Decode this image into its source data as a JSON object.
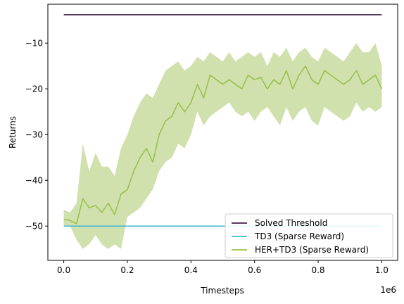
{
  "chart_data": {
    "type": "line",
    "title": "",
    "xlabel": "Timesteps",
    "ylabel": "Returns",
    "x_offset_label": "1e6",
    "xlim": [
      -50000,
      1050000
    ],
    "ylim": [
      -57.5,
      -1.5
    ],
    "x_ticks": [
      0,
      200000,
      400000,
      600000,
      800000,
      1000000
    ],
    "x_tick_labels": [
      "0.0",
      "0.2",
      "0.4",
      "0.6",
      "0.8",
      "1.0"
    ],
    "y_ticks": [
      -50,
      -40,
      -30,
      -20,
      -10
    ],
    "y_tick_labels": [
      "−50",
      "−40",
      "−30",
      "−20",
      "−10"
    ],
    "grid": false,
    "legend_position": "lower-right",
    "series": [
      {
        "name": "Solved Threshold",
        "color": "#3b1f44",
        "x": [
          0,
          1000000
        ],
        "y": [
          -3.8,
          -3.8
        ]
      },
      {
        "name": "TD3 (Sparse Reward)",
        "color": "#3fb8d6",
        "x": [
          0,
          1000000
        ],
        "y": [
          -50,
          -50
        ]
      },
      {
        "name": "HER+TD3 (Sparse Reward)",
        "color": "#9ac14c",
        "band_color": "#c8dca0",
        "x": [
          0,
          20000,
          40000,
          60000,
          80000,
          100000,
          120000,
          140000,
          160000,
          180000,
          200000,
          220000,
          240000,
          260000,
          280000,
          300000,
          320000,
          340000,
          360000,
          380000,
          400000,
          420000,
          440000,
          460000,
          480000,
          500000,
          520000,
          540000,
          560000,
          580000,
          600000,
          620000,
          640000,
          660000,
          680000,
          700000,
          720000,
          740000,
          760000,
          780000,
          800000,
          820000,
          840000,
          860000,
          880000,
          900000,
          920000,
          940000,
          960000,
          980000,
          1000000
        ],
        "y": [
          -48.5,
          -48.8,
          -49.5,
          -44,
          -46,
          -45.5,
          -47,
          -45,
          -47.5,
          -43,
          -42,
          -38,
          -35,
          -33,
          -36,
          -30,
          -27,
          -26,
          -23,
          -25,
          -23,
          -19,
          -22,
          -17,
          -18,
          -19,
          -18,
          -19,
          -20,
          -17,
          -18,
          -17.5,
          -20,
          -18,
          -19,
          -16,
          -20,
          -17,
          -15,
          -18,
          -19,
          -16,
          -17,
          -18,
          -19,
          -18,
          -16,
          -19,
          -18,
          -17,
          -20
        ],
        "y_low": [
          -50,
          -50,
          -53,
          -55,
          -54,
          -52,
          -54,
          -55,
          -54,
          -55,
          -48,
          -47,
          -46,
          -44,
          -42,
          -38,
          -36,
          -35,
          -32,
          -33,
          -30,
          -25,
          -28,
          -26,
          -25,
          -24,
          -23,
          -25,
          -26,
          -25,
          -27,
          -25,
          -24,
          -26,
          -28,
          -24,
          -27,
          -25,
          -24,
          -27,
          -28,
          -24,
          -25,
          -26,
          -27,
          -26,
          -23,
          -25,
          -24,
          -25,
          -24
        ],
        "y_high": [
          -46.5,
          -47,
          -45,
          -32,
          -38,
          -34,
          -37,
          -37,
          -39,
          -33,
          -30,
          -26,
          -23,
          -21,
          -22,
          -19,
          -16,
          -15,
          -14,
          -16,
          -15,
          -13,
          -14,
          -12,
          -13,
          -14,
          -12,
          -14,
          -13,
          -12,
          -13,
          -12,
          -15,
          -12,
          -13,
          -11,
          -14,
          -12,
          -11,
          -13,
          -14,
          -11,
          -12,
          -13,
          -14,
          -12,
          -10,
          -12,
          -12,
          -10,
          -15
        ]
      }
    ]
  }
}
